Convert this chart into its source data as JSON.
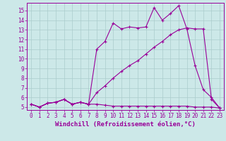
{
  "background_color": "#cce8e8",
  "grid_color": "#aacccc",
  "line_color": "#990099",
  "xlabel": "Windchill (Refroidissement éolien,°C)",
  "xlim": [
    -0.5,
    23.5
  ],
  "ylim": [
    4.7,
    15.8
  ],
  "yticks": [
    5,
    6,
    7,
    8,
    9,
    10,
    11,
    12,
    13,
    14,
    15
  ],
  "xticks": [
    0,
    1,
    2,
    3,
    4,
    5,
    6,
    7,
    8,
    9,
    10,
    11,
    12,
    13,
    14,
    15,
    16,
    17,
    18,
    19,
    20,
    21,
    22,
    23
  ],
  "series": [
    {
      "x": [
        0,
        1,
        2,
        3,
        4,
        5,
        6,
        7,
        8,
        9,
        10,
        11,
        12,
        13,
        14,
        15,
        16,
        17,
        18,
        19,
        20,
        21,
        22,
        23
      ],
      "y": [
        5.3,
        5.0,
        5.4,
        5.5,
        5.8,
        5.3,
        5.5,
        5.3,
        6.5,
        7.2,
        8.0,
        8.7,
        9.3,
        9.8,
        10.5,
        11.2,
        11.8,
        12.5,
        13.0,
        13.2,
        13.1,
        13.1,
        5.8,
        4.9
      ]
    },
    {
      "x": [
        0,
        1,
        2,
        3,
        4,
        5,
        6,
        7,
        8,
        9,
        10,
        11,
        12,
        13,
        14,
        15,
        16,
        17,
        18,
        19,
        20,
        21,
        22,
        23
      ],
      "y": [
        5.3,
        5.0,
        5.4,
        5.5,
        5.8,
        5.3,
        5.5,
        5.3,
        11.0,
        11.8,
        13.7,
        13.1,
        13.3,
        13.2,
        13.3,
        15.3,
        14.0,
        14.7,
        15.5,
        13.1,
        9.3,
        6.8,
        6.0,
        4.9
      ]
    },
    {
      "x": [
        0,
        1,
        2,
        3,
        4,
        5,
        6,
        7,
        8,
        9,
        10,
        11,
        12,
        13,
        14,
        15,
        16,
        17,
        18,
        19,
        20,
        21,
        22,
        23
      ],
      "y": [
        5.3,
        5.0,
        5.4,
        5.5,
        5.8,
        5.3,
        5.5,
        5.3,
        5.3,
        5.2,
        5.1,
        5.1,
        5.1,
        5.1,
        5.1,
        5.1,
        5.1,
        5.1,
        5.1,
        5.1,
        5.0,
        5.0,
        5.0,
        4.9
      ]
    }
  ],
  "marker": "+",
  "markersize": 3.5,
  "linewidth": 0.8,
  "xlabel_fontsize": 6.5,
  "tick_fontsize": 5.5
}
